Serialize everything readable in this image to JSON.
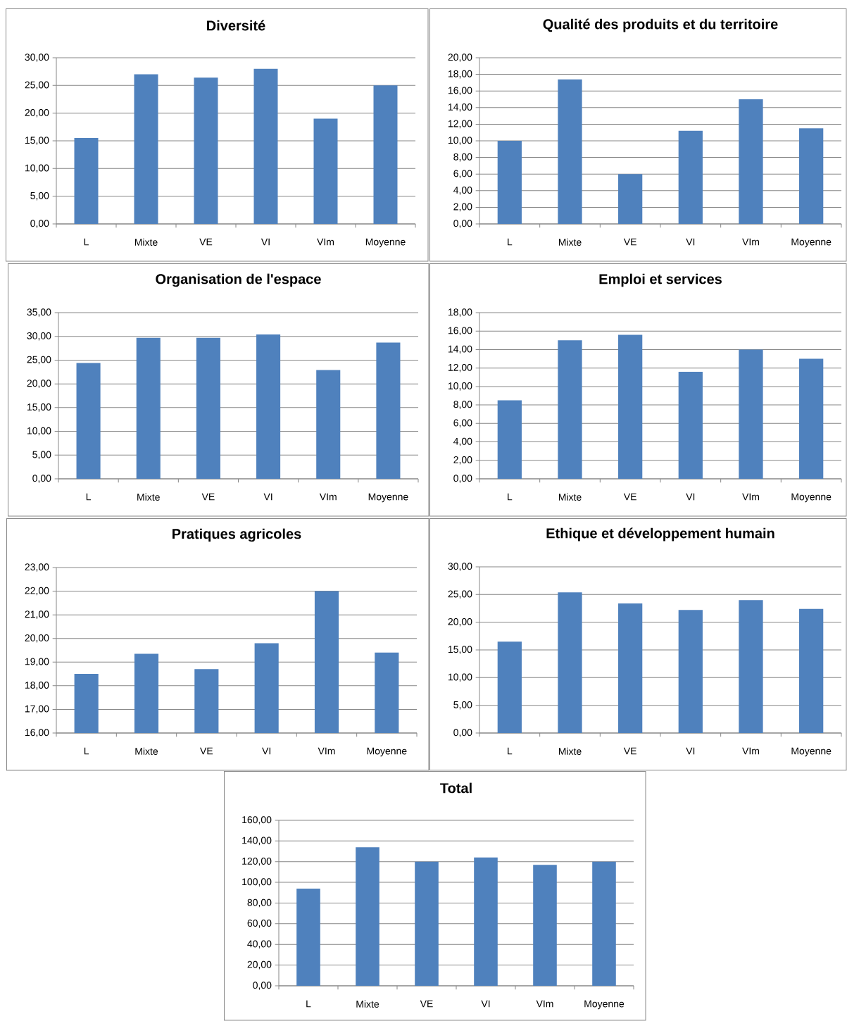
{
  "chart_data": [
    {
      "type": "bar",
      "title": "Diversité",
      "categories": [
        "L",
        "Mixte",
        "VE",
        "VI",
        "VIm",
        "Moyenne"
      ],
      "values": [
        15.5,
        27.0,
        26.4,
        28.0,
        19.0,
        25.0
      ],
      "color": "#4f81bd",
      "ylim": [
        0,
        30
      ],
      "yticks": [
        {
          "value": 0,
          "label": "0,00"
        },
        {
          "value": 5,
          "label": "5,00"
        },
        {
          "value": 10,
          "label": "10,00"
        },
        {
          "value": 15,
          "label": "15,00"
        },
        {
          "value": 20,
          "label": "20,00"
        },
        {
          "value": 25,
          "label": "25,00"
        },
        {
          "value": 30,
          "label": "30,00"
        }
      ],
      "grid": "y"
    },
    {
      "type": "bar",
      "title": "Qualité des produits et du territoire",
      "categories": [
        "L",
        "Mixte",
        "VE",
        "VI",
        "VIm",
        "Moyenne"
      ],
      "values": [
        10.0,
        17.4,
        6.0,
        11.2,
        15.0,
        11.5
      ],
      "color": "#4f81bd",
      "ylim": [
        0,
        20
      ],
      "yticks": [
        {
          "value": 0,
          "label": "0,00"
        },
        {
          "value": 2,
          "label": "2,00"
        },
        {
          "value": 4,
          "label": "4,00"
        },
        {
          "value": 6,
          "label": "6,00"
        },
        {
          "value": 8,
          "label": "8,00"
        },
        {
          "value": 10,
          "label": "10,00"
        },
        {
          "value": 12,
          "label": "12,00"
        },
        {
          "value": 14,
          "label": "14,00"
        },
        {
          "value": 16,
          "label": "16,00"
        },
        {
          "value": 18,
          "label": "18,00"
        },
        {
          "value": 20,
          "label": "20,00"
        }
      ],
      "grid": "y"
    },
    {
      "type": "bar",
      "title": "Organisation de l'espace",
      "categories": [
        "L",
        "Mixte",
        "VE",
        "VI",
        "VIm",
        "Moyenne"
      ],
      "values": [
        24.4,
        29.7,
        29.7,
        30.4,
        22.9,
        28.7
      ],
      "color": "#4f81bd",
      "ylim": [
        0,
        35
      ],
      "yticks": [
        {
          "value": 0,
          "label": "0,00"
        },
        {
          "value": 5,
          "label": "5,00"
        },
        {
          "value": 10,
          "label": "10,00"
        },
        {
          "value": 15,
          "label": "15,00"
        },
        {
          "value": 20,
          "label": "20,00"
        },
        {
          "value": 25,
          "label": "25,00"
        },
        {
          "value": 30,
          "label": "30,00"
        },
        {
          "value": 35,
          "label": "35,00"
        }
      ],
      "grid": "y"
    },
    {
      "type": "bar",
      "title": "Emploi et services",
      "categories": [
        "L",
        "Mixte",
        "VE",
        "VI",
        "VIm",
        "Moyenne"
      ],
      "values": [
        8.5,
        15.0,
        15.6,
        11.6,
        14.0,
        13.0
      ],
      "color": "#4f81bd",
      "ylim": [
        0,
        18
      ],
      "yticks": [
        {
          "value": 0,
          "label": "0,00"
        },
        {
          "value": 2,
          "label": "2,00"
        },
        {
          "value": 4,
          "label": "4,00"
        },
        {
          "value": 6,
          "label": "6,00"
        },
        {
          "value": 8,
          "label": "8,00"
        },
        {
          "value": 10,
          "label": "10,00"
        },
        {
          "value": 12,
          "label": "12,00"
        },
        {
          "value": 14,
          "label": "14,00"
        },
        {
          "value": 16,
          "label": "16,00"
        },
        {
          "value": 18,
          "label": "18,00"
        }
      ],
      "grid": "y"
    },
    {
      "type": "bar",
      "title": "Pratiques agricoles",
      "categories": [
        "L",
        "Mixte",
        "VE",
        "VI",
        "VIm",
        "Moyenne"
      ],
      "values": [
        18.5,
        19.35,
        18.7,
        19.8,
        22.0,
        19.4
      ],
      "color": "#4f81bd",
      "ylim": [
        16,
        23
      ],
      "yticks": [
        {
          "value": 16,
          "label": "16,00"
        },
        {
          "value": 17,
          "label": "17,00"
        },
        {
          "value": 18,
          "label": "18,00"
        },
        {
          "value": 19,
          "label": "19,00"
        },
        {
          "value": 20,
          "label": "20,00"
        },
        {
          "value": 21,
          "label": "21,00"
        },
        {
          "value": 22,
          "label": "22,00"
        },
        {
          "value": 23,
          "label": "23,00"
        }
      ],
      "grid": "y"
    },
    {
      "type": "bar",
      "title": "Ethique et développement humain",
      "categories": [
        "L",
        "Mixte",
        "VE",
        "VI",
        "VIm",
        "Moyenne"
      ],
      "values": [
        16.5,
        25.4,
        23.4,
        22.2,
        24.0,
        22.4
      ],
      "color": "#4f81bd",
      "ylim": [
        0,
        30
      ],
      "yticks": [
        {
          "value": 0,
          "label": "0,00"
        },
        {
          "value": 5,
          "label": "5,00"
        },
        {
          "value": 10,
          "label": "10,00"
        },
        {
          "value": 15,
          "label": "15,00"
        },
        {
          "value": 20,
          "label": "20,00"
        },
        {
          "value": 25,
          "label": "25,00"
        },
        {
          "value": 30,
          "label": "30,00"
        }
      ],
      "grid": "y"
    },
    {
      "type": "bar",
      "title": "Total",
      "categories": [
        "L",
        "Mixte",
        "VE",
        "VI",
        "VIm",
        "Moyenne"
      ],
      "values": [
        94,
        134,
        120,
        124,
        117,
        120
      ],
      "color": "#4f81bd",
      "ylim": [
        0,
        160
      ],
      "yticks": [
        {
          "value": 0,
          "label": "0,00"
        },
        {
          "value": 20,
          "label": "20,00"
        },
        {
          "value": 40,
          "label": "40,00"
        },
        {
          "value": 60,
          "label": "60,00"
        },
        {
          "value": 80,
          "label": "80,00"
        },
        {
          "value": 100,
          "label": "100,00"
        },
        {
          "value": 120,
          "label": "120,00"
        },
        {
          "value": 140,
          "label": "140,00"
        },
        {
          "value": 160,
          "label": "160,00"
        }
      ],
      "grid": "y"
    }
  ]
}
